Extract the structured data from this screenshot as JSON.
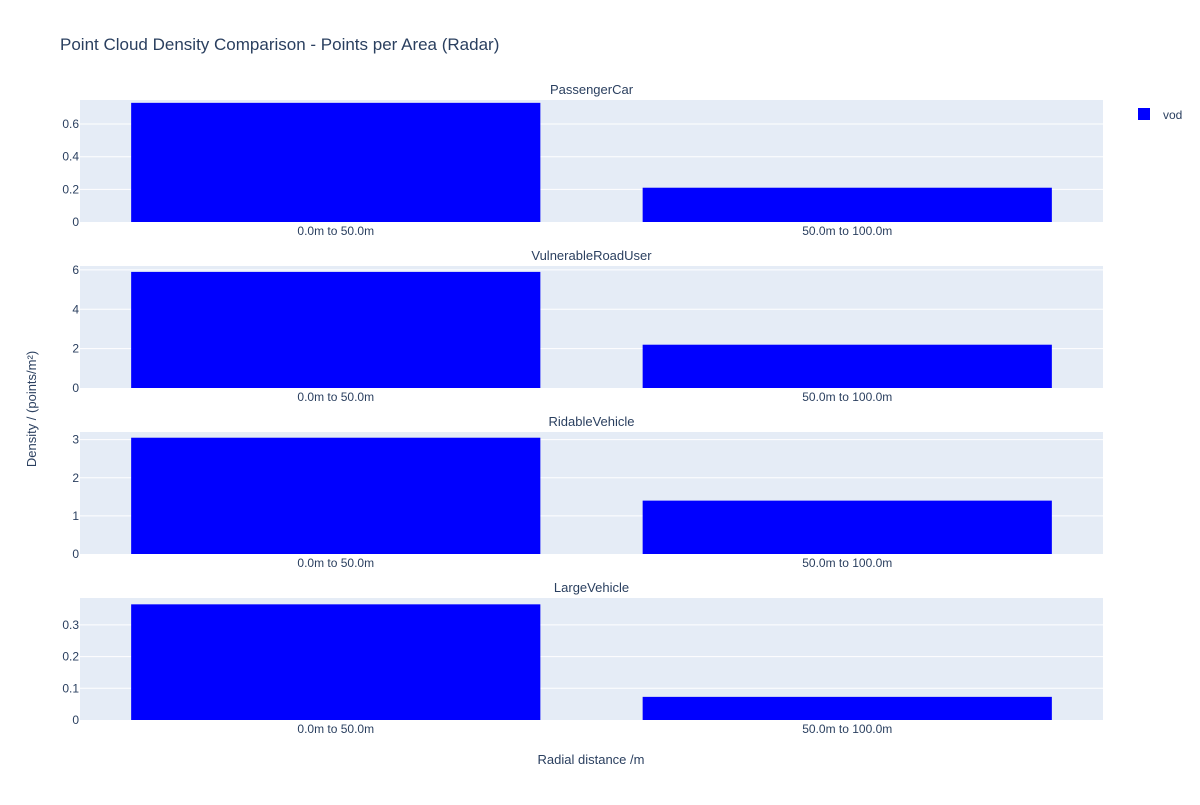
{
  "chart_data": {
    "type": "bar",
    "title": "Point Cloud Density Comparison - Points per Area (Radar)",
    "xlabel": "Radial distance /m",
    "ylabel": "Density / (points/m²)",
    "legend": {
      "placement": "top-right",
      "entries": [
        {
          "name": "vod",
          "color": "#0000ff"
        }
      ]
    },
    "grid": true,
    "categories": [
      "0.0m to 50.0m",
      "50.0m to 100.0m"
    ],
    "bar_color": "#0000ff",
    "panels": [
      {
        "title": "PassengerCar",
        "ylim": [
          0,
          0.7474
        ],
        "yticks": [
          0,
          0.2,
          0.4,
          0.6
        ],
        "ytick_labels": [
          "0",
          "0.2",
          "0.4",
          "0.6"
        ],
        "series": [
          {
            "name": "vod",
            "values": [
              0.73,
              0.21
            ]
          }
        ]
      },
      {
        "title": "VulnerableRoadUser",
        "ylim": [
          0,
          6.2
        ],
        "yticks": [
          0,
          2,
          4,
          6
        ],
        "ytick_labels": [
          "0",
          "2",
          "4",
          "6"
        ],
        "series": [
          {
            "name": "vod",
            "values": [
              5.9,
              2.2
            ]
          }
        ]
      },
      {
        "title": "RidableVehicle",
        "ylim": [
          0,
          3.2
        ],
        "yticks": [
          0,
          1,
          2,
          3
        ],
        "ytick_labels": [
          "0",
          "1",
          "2",
          "3"
        ],
        "series": [
          {
            "name": "vod",
            "values": [
              3.05,
              1.4
            ]
          }
        ]
      },
      {
        "title": "LargeVehicle",
        "ylim": [
          0,
          0.385
        ],
        "yticks": [
          0,
          0.1,
          0.2,
          0.3
        ],
        "ytick_labels": [
          "0",
          "0.1",
          "0.2",
          "0.3"
        ],
        "series": [
          {
            "name": "vod",
            "values": [
              0.365,
              0.073
            ]
          }
        ]
      }
    ]
  }
}
